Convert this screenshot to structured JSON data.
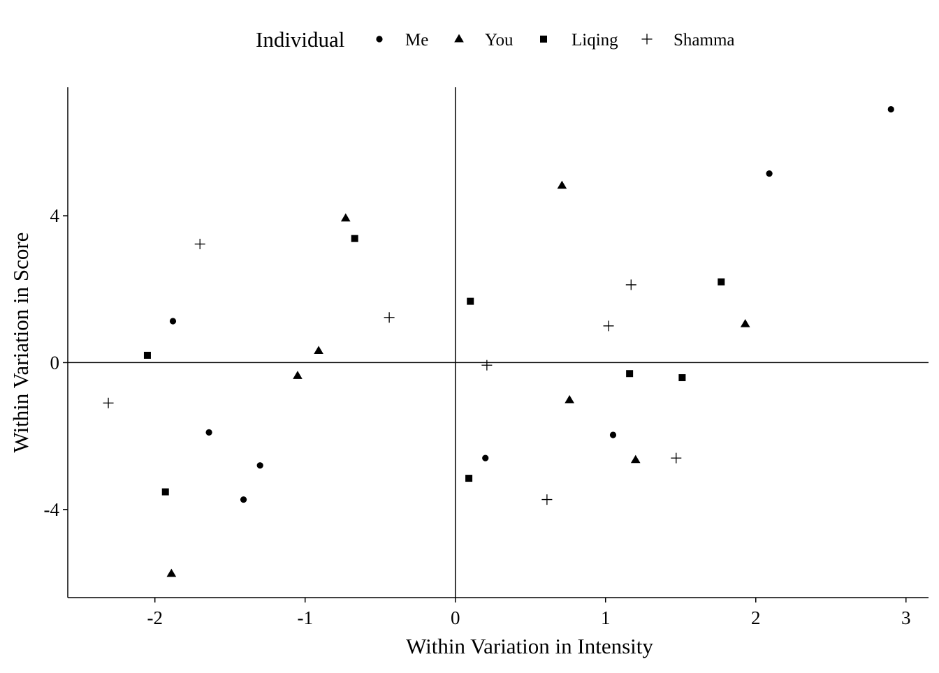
{
  "chart_data": {
    "type": "scatter",
    "title": "",
    "xlabel": "Within Variation in Intensity",
    "ylabel": "Within Variation in Score",
    "xlim": [
      -2.58,
      3.15
    ],
    "ylim": [
      -6.4,
      7.5
    ],
    "x_ticks": [
      -2,
      -1,
      0,
      1,
      2,
      3
    ],
    "x_tick_labels": [
      "-2",
      "-1",
      "0",
      "1",
      "2",
      "3"
    ],
    "y_ticks": [
      -4,
      0,
      4
    ],
    "y_tick_labels": [
      "-4",
      "0",
      "4"
    ],
    "reference_lines": {
      "x": 0,
      "y": 0
    },
    "grid": false,
    "legend": {
      "title": "Individual",
      "position": "top",
      "entries": [
        {
          "name": "Me",
          "shape": "circle"
        },
        {
          "name": "You",
          "shape": "triangle"
        },
        {
          "name": "Liqing",
          "shape": "square"
        },
        {
          "name": "Shamma",
          "shape": "plus"
        }
      ]
    },
    "series": [
      {
        "name": "Me",
        "shape": "circle",
        "points": [
          {
            "x": 2.9,
            "y": 6.9
          },
          {
            "x": 2.09,
            "y": 5.15
          },
          {
            "x": -1.88,
            "y": 1.13
          },
          {
            "x": -1.64,
            "y": -1.9
          },
          {
            "x": -1.3,
            "y": -2.8
          },
          {
            "x": -1.41,
            "y": -3.73
          },
          {
            "x": 0.2,
            "y": -2.6
          },
          {
            "x": 1.05,
            "y": -1.97
          }
        ]
      },
      {
        "name": "You",
        "shape": "triangle",
        "points": [
          {
            "x": 0.71,
            "y": 4.82
          },
          {
            "x": -0.73,
            "y": 3.93
          },
          {
            "x": -0.91,
            "y": 0.32
          },
          {
            "x": -1.05,
            "y": -0.36
          },
          {
            "x": 0.76,
            "y": -1.02
          },
          {
            "x": 1.2,
            "y": -2.65
          },
          {
            "x": 1.93,
            "y": 1.05
          },
          {
            "x": -1.89,
            "y": -5.75
          }
        ]
      },
      {
        "name": "Liqing",
        "shape": "square",
        "points": [
          {
            "x": -0.67,
            "y": 3.38
          },
          {
            "x": 0.1,
            "y": 1.67
          },
          {
            "x": 1.77,
            "y": 2.2
          },
          {
            "x": -2.05,
            "y": 0.2
          },
          {
            "x": 1.16,
            "y": -0.3
          },
          {
            "x": 1.51,
            "y": -0.41
          },
          {
            "x": -1.93,
            "y": -3.52
          },
          {
            "x": 0.09,
            "y": -3.15
          }
        ]
      },
      {
        "name": "Shamma",
        "shape": "plus",
        "points": [
          {
            "x": -1.7,
            "y": 3.23
          },
          {
            "x": -0.44,
            "y": 1.23
          },
          {
            "x": 1.17,
            "y": 2.12
          },
          {
            "x": 1.02,
            "y": 1.0
          },
          {
            "x": 0.21,
            "y": -0.07
          },
          {
            "x": -2.31,
            "y": -1.1
          },
          {
            "x": 1.47,
            "y": -2.6
          },
          {
            "x": 0.61,
            "y": -3.73
          }
        ]
      }
    ]
  }
}
